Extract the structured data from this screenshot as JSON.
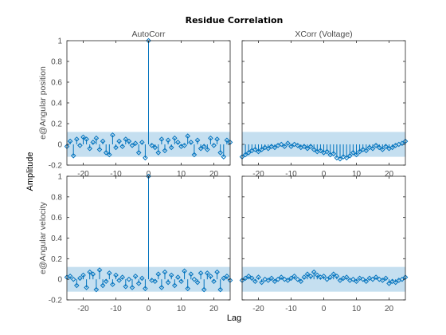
{
  "figure": {
    "title": "Residue Correlation",
    "xlabel": "Lag",
    "ylabel": "Amplitude"
  },
  "colors": {
    "line": "#0072bd",
    "band": "#c5dff0",
    "axis": "#262626"
  },
  "chart_data": [
    {
      "type": "stem",
      "title": "AutoCorr",
      "ylabel": "e@Angular position",
      "xlim": [
        -25,
        25
      ],
      "ylim": [
        -0.2,
        1
      ],
      "xticks": [
        -20,
        -10,
        0,
        10,
        20
      ],
      "yticks": [
        -0.2,
        0,
        0.2,
        0.4,
        0.6,
        0.8,
        1
      ],
      "confidence_band": [
        -0.12,
        0.12
      ],
      "x": [
        -25,
        -24,
        -23,
        -22,
        -21,
        -20,
        -19,
        -18,
        -17,
        -16,
        -15,
        -14,
        -13,
        -12,
        -11,
        -10,
        -9,
        -8,
        -7,
        -6,
        -5,
        -4,
        -3,
        -2,
        -1,
        0,
        1,
        2,
        3,
        4,
        5,
        6,
        7,
        8,
        9,
        10,
        11,
        12,
        13,
        14,
        15,
        16,
        17,
        18,
        19,
        20,
        21,
        22,
        23,
        24,
        25
      ],
      "values": [
        -0.02,
        0.03,
        -0.11,
        0.05,
        -0.01,
        0.07,
        0.05,
        -0.04,
        0.02,
        0.06,
        -0.05,
        0.03,
        -0.08,
        -0.1,
        0.09,
        -0.03,
        0.03,
        -0.02,
        0.05,
        0.03,
        -0.01,
        0.01,
        -0.08,
        0.02,
        -0.13,
        1.0,
        -0.01,
        -0.03,
        -0.08,
        0.05,
        -0.06,
        0.04,
        -0.03,
        0.06,
        0.02,
        -0.02,
        -0.01,
        0.08,
        0.02,
        -0.1,
        0.04,
        -0.04,
        -0.02,
        -0.05,
        0.06,
        -0.01,
        0.05,
        -0.08,
        -0.12,
        0.04,
        0.02
      ]
    },
    {
      "type": "stem",
      "title": "XCorr (Voltage)",
      "xlim": [
        -25,
        25
      ],
      "ylim": [
        -0.2,
        1
      ],
      "xticks": [
        -20,
        -10,
        0,
        10,
        20
      ],
      "yticks": [
        -0.2,
        0,
        0.2,
        0.4,
        0.6,
        0.8,
        1
      ],
      "confidence_band": [
        -0.12,
        0.12
      ],
      "x": [
        -25,
        -24,
        -23,
        -22,
        -21,
        -20,
        -19,
        -18,
        -17,
        -16,
        -15,
        -14,
        -13,
        -12,
        -11,
        -10,
        -9,
        -8,
        -7,
        -6,
        -5,
        -4,
        -3,
        -2,
        -1,
        0,
        1,
        2,
        3,
        4,
        5,
        6,
        7,
        8,
        9,
        10,
        11,
        12,
        13,
        14,
        15,
        16,
        17,
        18,
        19,
        20,
        21,
        22,
        23,
        24,
        25
      ],
      "values": [
        -0.12,
        -0.1,
        -0.08,
        -0.06,
        -0.05,
        -0.07,
        -0.05,
        -0.03,
        -0.04,
        -0.02,
        -0.03,
        -0.01,
        0.0,
        -0.02,
        0.01,
        -0.02,
        0.0,
        -0.01,
        -0.03,
        -0.02,
        -0.04,
        -0.02,
        -0.05,
        -0.07,
        -0.06,
        -0.08,
        -0.07,
        -0.1,
        -0.09,
        -0.13,
        -0.14,
        -0.12,
        -0.13,
        -0.11,
        -0.08,
        -0.1,
        -0.07,
        -0.05,
        -0.06,
        -0.03,
        -0.04,
        -0.01,
        -0.03,
        -0.05,
        -0.02,
        -0.04,
        -0.03,
        -0.01,
        0.0,
        0.01,
        0.03
      ]
    },
    {
      "type": "stem",
      "ylabel": "e@Angular velocity",
      "xlim": [
        -25,
        25
      ],
      "ylim": [
        -0.2,
        1
      ],
      "xticks": [
        -20,
        -10,
        0,
        10,
        20
      ],
      "yticks": [
        -0.2,
        0,
        0.2,
        0.4,
        0.6,
        0.8,
        1
      ],
      "confidence_band": [
        -0.12,
        0.12
      ],
      "x": [
        -25,
        -24,
        -23,
        -22,
        -21,
        -20,
        -19,
        -18,
        -17,
        -16,
        -15,
        -14,
        -13,
        -12,
        -11,
        -10,
        -9,
        -8,
        -7,
        -6,
        -5,
        -4,
        -3,
        -2,
        -1,
        0,
        1,
        2,
        3,
        4,
        5,
        6,
        7,
        8,
        9,
        10,
        11,
        12,
        13,
        14,
        15,
        16,
        17,
        18,
        19,
        20,
        21,
        22,
        23,
        24,
        25
      ],
      "values": [
        0.02,
        0.03,
        0.0,
        -0.06,
        0.01,
        0.04,
        -0.08,
        0.07,
        0.05,
        -0.1,
        0.09,
        -0.06,
        -0.02,
        0.06,
        -0.05,
        0.04,
        -0.01,
        0.02,
        -0.07,
        0.0,
        -0.08,
        0.03,
        -0.04,
        0.01,
        -0.09,
        1.0,
        -0.01,
        -0.02,
        0.05,
        -0.08,
        0.07,
        -0.03,
        0.04,
        -0.06,
        0.02,
        -0.02,
        0.08,
        -0.09,
        0.05,
        0.0,
        -0.03,
        0.06,
        -0.1,
        0.06,
        0.03,
        -0.02,
        0.07,
        -0.1,
        0.01,
        0.03,
        -0.01
      ]
    },
    {
      "type": "stem",
      "xlim": [
        -25,
        25
      ],
      "ylim": [
        -0.2,
        1
      ],
      "xticks": [
        -20,
        -10,
        0,
        10,
        20
      ],
      "yticks": [
        -0.2,
        0,
        0.2,
        0.4,
        0.6,
        0.8,
        1
      ],
      "confidence_band": [
        -0.12,
        0.12
      ],
      "x": [
        -25,
        -24,
        -23,
        -22,
        -21,
        -20,
        -19,
        -18,
        -17,
        -16,
        -15,
        -14,
        -13,
        -12,
        -11,
        -10,
        -9,
        -8,
        -7,
        -6,
        -5,
        -4,
        -3,
        -2,
        -1,
        0,
        1,
        2,
        3,
        4,
        5,
        6,
        7,
        8,
        9,
        10,
        11,
        12,
        13,
        14,
        15,
        16,
        17,
        18,
        19,
        20,
        21,
        22,
        23,
        24,
        25
      ],
      "values": [
        -0.01,
        0.01,
        0.03,
        0.01,
        -0.02,
        0.02,
        -0.03,
        0.0,
        -0.01,
        0.01,
        -0.02,
        0.0,
        0.02,
        0.0,
        -0.01,
        0.01,
        0.03,
        0.0,
        -0.02,
        0.02,
        0.05,
        0.03,
        0.07,
        0.04,
        0.02,
        0.03,
        0.0,
        0.02,
        0.05,
        0.03,
        -0.01,
        0.01,
        0.02,
        -0.01,
        0.0,
        -0.02,
        0.01,
        0.0,
        -0.02,
        0.01,
        0.0,
        0.02,
        0.0,
        -0.01,
        0.01,
        -0.04,
        -0.02,
        -0.03,
        -0.01,
        0.0,
        0.02
      ]
    }
  ]
}
